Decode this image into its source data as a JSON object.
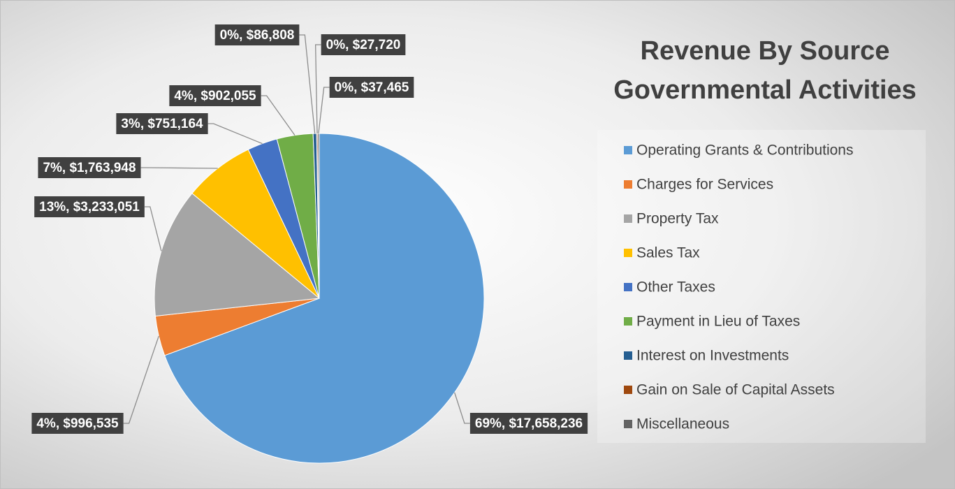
{
  "chart_data": {
    "type": "pie",
    "title": [
      "Revenue By Source",
      "Governmental Activities"
    ],
    "categories": [
      "Operating Grants & Contributions",
      "Charges for Services",
      "Property Tax",
      "Sales Tax",
      "Other Taxes",
      "Payment in Lieu of Taxes",
      "Interest on Investments",
      "Gain on Sale of Capital Assets",
      "Miscellaneous"
    ],
    "values": [
      17658236,
      996535,
      3233051,
      1763948,
      751164,
      902055,
      86808,
      27720,
      37465
    ],
    "value_labels": [
      "69%, $17,658,236",
      "4%, $996,535",
      "13%, $3,233,051",
      "7%, $1,763,948",
      "3%, $751,164",
      "4%, $902,055",
      "0%, $86,808",
      "0%, $27,720",
      "0%, $37,465"
    ],
    "colors": [
      "#5b9bd5",
      "#ed7d31",
      "#a5a5a5",
      "#ffc000",
      "#4472c4",
      "#70ad47",
      "#255e91",
      "#9e480e",
      "#636363"
    ],
    "legend": "right"
  }
}
